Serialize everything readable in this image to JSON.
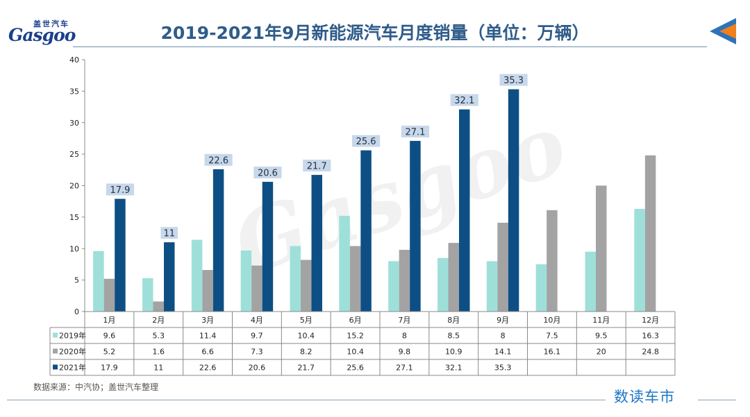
{
  "header": {
    "title": "2019-2021年9月新能源汽车月度销量（单位：万辆）",
    "logo_cn": "盖世汽车",
    "logo_en": "Gasgoo"
  },
  "footer": {
    "source": "数据来源：中汽协；盖世汽车整理",
    "brand": "数读车市"
  },
  "colors": {
    "s2019": "#9ee0d9",
    "s2020": "#a3a3a3",
    "s2021": "#0d4f85",
    "accent_orange": "#f07f1e",
    "accent_blue": "#2e72b8"
  },
  "chart_data": {
    "type": "bar",
    "categories": [
      "1月",
      "2月",
      "3月",
      "4月",
      "5月",
      "6月",
      "7月",
      "8月",
      "9月",
      "10月",
      "11月",
      "12月"
    ],
    "series": [
      {
        "name": "2019年",
        "values": [
          9.6,
          5.3,
          11.4,
          9.7,
          10.4,
          15.2,
          8,
          8.5,
          8,
          7.5,
          9.5,
          16.3
        ]
      },
      {
        "name": "2020年",
        "values": [
          5.2,
          1.6,
          6.6,
          7.3,
          8.2,
          10.4,
          9.8,
          10.9,
          14.1,
          16.1,
          20,
          24.8
        ]
      },
      {
        "name": "2021年",
        "values": [
          17.9,
          11,
          22.6,
          20.6,
          21.7,
          25.6,
          27.1,
          32.1,
          35.3,
          null,
          null,
          null
        ]
      }
    ],
    "ylim": [
      0,
      40
    ],
    "yticks": [
      0,
      5,
      10,
      15,
      20,
      25,
      30,
      35,
      40
    ],
    "data_labels_series": "2021年",
    "legend": "data-table-left",
    "grid": false
  }
}
